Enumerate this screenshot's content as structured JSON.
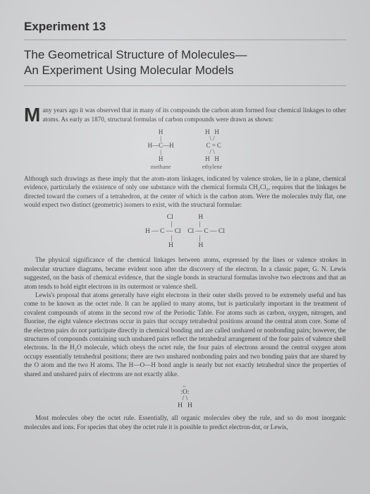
{
  "header": {
    "experiment": "Experiment 13",
    "title_line1": "The Geometrical Structure of Molecules—",
    "title_line2": "An Experiment Using Molecular Models"
  },
  "intro": {
    "dropcap": "M",
    "text": "any years ago it was observed that in many of its compounds the carbon atom formed four chemical linkages to other atoms. As early as 1870, structural formulas of carbon compounds were drawn as shown:"
  },
  "methane": {
    "lines": [
      "   H   ",
      "   |   ",
      "H—C—H",
      "   |   ",
      "   H   "
    ],
    "label": "methane"
  },
  "ethylene": {
    "lines": [
      "H   H",
      " \\ / ",
      "  C = C",
      " / \\ ",
      "H   H"
    ],
    "label": "ethylene"
  },
  "para1": "Although such drawings as these imply that the atom-atom linkages, indicated by valence strokes, lie in a plane, chemical evidence, particularly the existence of only one substance with the chemical formula CH₂Cl₂, requires that the linkages be directed toward the corners of a tetrahedron, at the center of which is the carbon atom. Were the molecules truly flat, one would expect two distinct (geometric) isomers to exist, with the structural formulae:",
  "isomers": {
    "lines": [
      "     Cl               H     ",
      "      |                |     ",
      "H — C — Cl    Cl — C — Cl",
      "      |                |     ",
      "      H               H     "
    ]
  },
  "para2": "The physical significance of the chemical linkages between atoms, expressed by the lines or valence strokes in molecular structure diagrams, became evident soon after the discovery of the electron. In a classic paper, G. N. Lewis suggested, on the basis of chemical evidence, that the single bonds in structural formulas involve two electrons and that an atom tends to hold eight electrons in its outermost or valence shell.",
  "para3": "Lewis's proposal that atoms generally have eight electrons in their outer shells proved to be extremely useful and has come to be known as the octet rule. It can be applied to many atoms, but is particularly important in the treatment of covalent compounds of atoms in the second row of the Periodic Table. For atoms such as carbon, oxygen, nitrogen, and fluorine, the eight valence electrons occur in pairs that occupy tetrahedral positions around the central atom core. Some of the electron pairs do not participate directly in chemical bonding and are called unshared or nonbonding pairs; however, the structures of compounds containing such unshared pairs reflect the tetrahedral arrangement of the four pairs of valence shell electrons. In the H₂O molecule, which obeys the octet rule, the four pairs of electrons around the central oxygen atom occupy essentially tetrahedral positions; there are two unshared nonbonding pairs and two bonding pairs that are shared by the O atom and the two H atoms. The H—O—H bond angle is nearly but not exactly tetrahedral since the properties of shared and unshared pairs of electrons are not exactly alike.",
  "water": {
    "lines": [
      " ..  ",
      ":O:",
      "/ \\",
      "H   H"
    ]
  },
  "para4": "Most molecules obey the octet rule. Essentially, all organic molecules obey the rule, and so do most inorganic molecules and ions. For species that obey the octet rule it is possible to predict electron-dot, or Lewis,"
}
